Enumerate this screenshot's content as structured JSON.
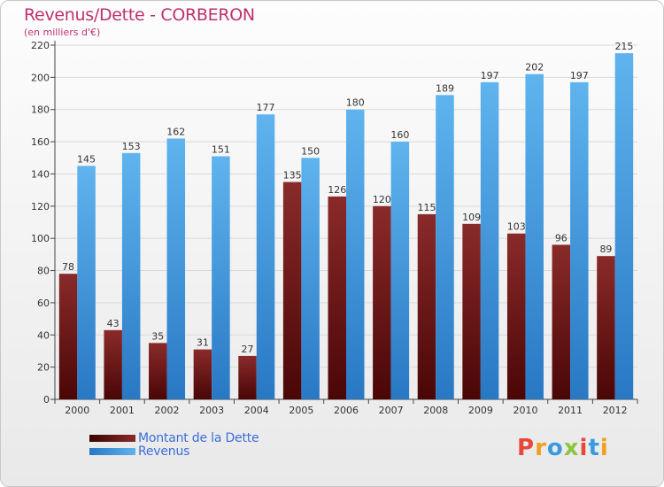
{
  "chart_data": {
    "type": "bar",
    "title": "Revenus/Dette - CORBERON",
    "subtitle": "(en milliers d'€)",
    "categories": [
      "2000",
      "2001",
      "2002",
      "2003",
      "2004",
      "2005",
      "2006",
      "2007",
      "2008",
      "2009",
      "2010",
      "2011",
      "2012"
    ],
    "series": [
      {
        "name": "Montant de la Dette",
        "color": "#7a1a1a",
        "values": [
          78,
          43,
          35,
          31,
          27,
          135,
          126,
          120,
          115,
          109,
          103,
          96,
          89
        ]
      },
      {
        "name": "Revenus",
        "color": "#3a9ae0",
        "values": [
          145,
          153,
          162,
          151,
          177,
          150,
          180,
          160,
          189,
          197,
          202,
          197,
          215
        ]
      }
    ],
    "ylim": [
      0,
      220
    ],
    "yticks": [
      0,
      20,
      40,
      60,
      80,
      100,
      120,
      140,
      160,
      180,
      200,
      220
    ],
    "grid": true,
    "legend_position": "bottom-left"
  },
  "logo": {
    "text": "Proxiti",
    "colors": [
      "#e8483c",
      "#f0a020",
      "#3a9ae0",
      "#8cc63f",
      "#e8483c",
      "#3a9ae0",
      "#f0a020"
    ]
  }
}
